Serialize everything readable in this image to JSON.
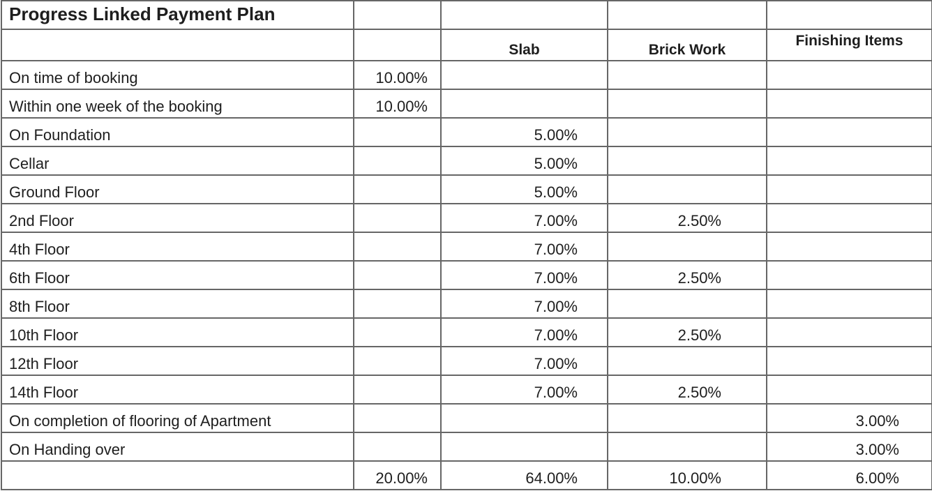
{
  "title": "Progress Linked Payment Plan",
  "headers": [
    "",
    "",
    "Slab",
    "Brick Work",
    "Finishing Items"
  ],
  "rows": [
    [
      "On time of booking",
      "10.00%",
      "",
      "",
      ""
    ],
    [
      "Within one week of  the booking",
      "10.00%",
      "",
      "",
      ""
    ],
    [
      "On Foundation",
      "",
      "5.00%",
      "",
      ""
    ],
    [
      "Cellar",
      "",
      "5.00%",
      "",
      ""
    ],
    [
      "Ground Floor",
      "",
      "5.00%",
      "",
      ""
    ],
    [
      "2nd Floor",
      "",
      "7.00%",
      "2.50%",
      ""
    ],
    [
      "4th Floor",
      "",
      "7.00%",
      "",
      ""
    ],
    [
      "6th Floor",
      "",
      "7.00%",
      "2.50%",
      ""
    ],
    [
      "8th Floor",
      "",
      "7.00%",
      "",
      ""
    ],
    [
      "10th Floor",
      "",
      "7.00%",
      "2.50%",
      ""
    ],
    [
      "12th Floor",
      "",
      "7.00%",
      "",
      ""
    ],
    [
      "14th Floor",
      "",
      "7.00%",
      "2.50%",
      ""
    ],
    [
      "On completion of flooring of Apartment",
      "",
      "",
      "",
      "3.00%"
    ],
    [
      "On Handing over",
      "",
      "",
      "",
      "3.00%"
    ]
  ],
  "totals": [
    "",
    "20.00%",
    "64.00%",
    "10.00%",
    "6.00%"
  ]
}
